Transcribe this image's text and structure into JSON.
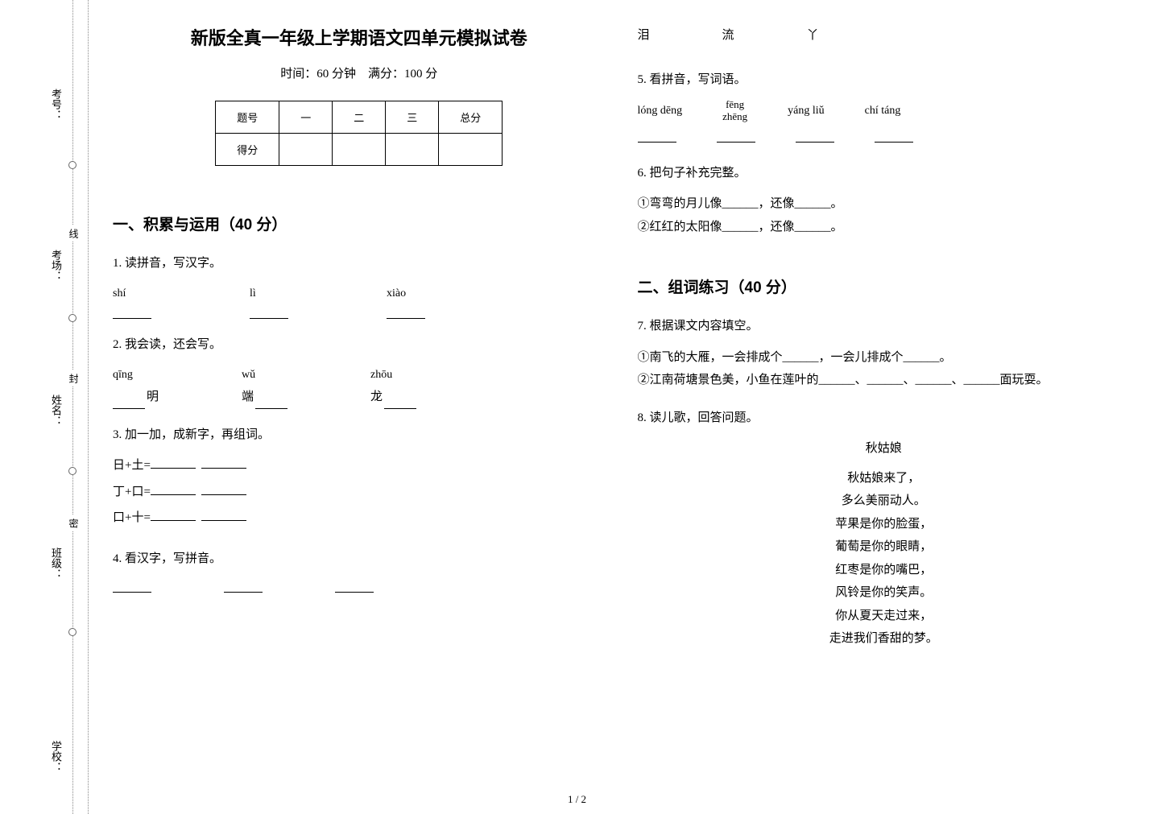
{
  "binding": {
    "labels": [
      "考号：",
      "考场：",
      "姓名：",
      "班级：",
      "学校："
    ],
    "dotted_labels": [
      "线",
      "封",
      "密"
    ]
  },
  "header": {
    "title": "新版全真一年级上学期语文四单元模拟试卷",
    "meta": "时间：60 分钟　满分：100 分"
  },
  "score_table": {
    "headers": [
      "题号",
      "一",
      "二",
      "三",
      "总分"
    ],
    "row2": "得分"
  },
  "section1": {
    "heading": "一、积累与运用（40 分）",
    "q1": {
      "title": "1.  读拼音，写汉字。",
      "items": [
        "shí",
        "lì",
        "xiào"
      ]
    },
    "q2": {
      "title": "2.  我会读，还会写。",
      "items": [
        {
          "py": "qīng",
          "suffix": "明"
        },
        {
          "py": "wǔ",
          "prefix": "端"
        },
        {
          "py": "zhōu",
          "prefix": "龙"
        }
      ]
    },
    "q3": {
      "title": "3.  加一加，成新字，再组词。",
      "lines": [
        "日+土=",
        "丁+口=",
        "口+十="
      ]
    },
    "q4": {
      "title": "4.  看汉字，写拼音。",
      "items": [
        "泪",
        "流",
        "丫"
      ]
    },
    "q5": {
      "title": "5.  看拼音，写词语。",
      "items": [
        "lóng dēng",
        {
          "top": "fēng",
          "bottom": "zhēng"
        },
        "yáng liǔ",
        "chí táng"
      ]
    },
    "q6": {
      "title": "6.  把句子补充完整。",
      "lines": [
        "①弯弯的月儿像______，还像______。",
        "②红红的太阳像______，还像______。"
      ]
    }
  },
  "section2": {
    "heading": "二、组词练习（40 分）",
    "q7": {
      "title": "7.  根据课文内容填空。",
      "lines": [
        "①南飞的大雁，一会排成个______，一会儿排成个______。",
        "②江南荷塘景色美，小鱼在莲叶的______、______、______、______面玩耍。"
      ]
    },
    "q8": {
      "title": "8.  读儿歌，回答问题。",
      "poem_title": "秋姑娘",
      "poem_lines": [
        "秋姑娘来了，",
        "多么美丽动人。",
        "苹果是你的脸蛋，",
        "葡萄是你的眼睛，",
        "红枣是你的嘴巴，",
        "风铃是你的笑声。",
        "你从夏天走过来，",
        "走进我们香甜的梦。"
      ]
    }
  },
  "page_num": "1 / 2",
  "colors": {
    "text": "#000000",
    "background": "#ffffff",
    "dotted": "#888888"
  },
  "fonts": {
    "body": "SimSun",
    "heading": "SimHei",
    "body_size": 15,
    "title_size": 22,
    "section_size": 19
  }
}
